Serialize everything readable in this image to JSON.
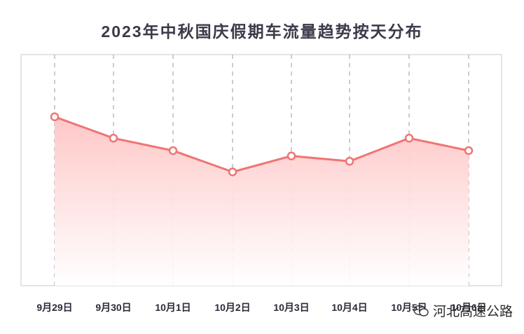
{
  "title": "2023年中秋国庆假期车流量趋势按天分布",
  "watermark": "河北高速公路",
  "colors": {
    "line": "#f07474",
    "area_top": "#ffc4c4",
    "area_bottom": "#ffffff",
    "marker_fill": "#ffffff",
    "frame": "#c8c8d0",
    "grid": "#9a9aa4"
  },
  "chart_data": {
    "type": "area",
    "title": "2023年中秋国庆假期车流量趋势按天分布",
    "categories": [
      "9月29日",
      "9月30日",
      "10月1日",
      "10月2日",
      "10月3日",
      "10月4日",
      "10月5日",
      "10月6日"
    ],
    "series": [
      {
        "values": [
          95,
          83,
          76,
          64,
          73,
          70,
          83,
          76
        ]
      }
    ],
    "ylim": [
      0,
      130
    ],
    "grid": "vertical dashed",
    "legend": "none"
  }
}
